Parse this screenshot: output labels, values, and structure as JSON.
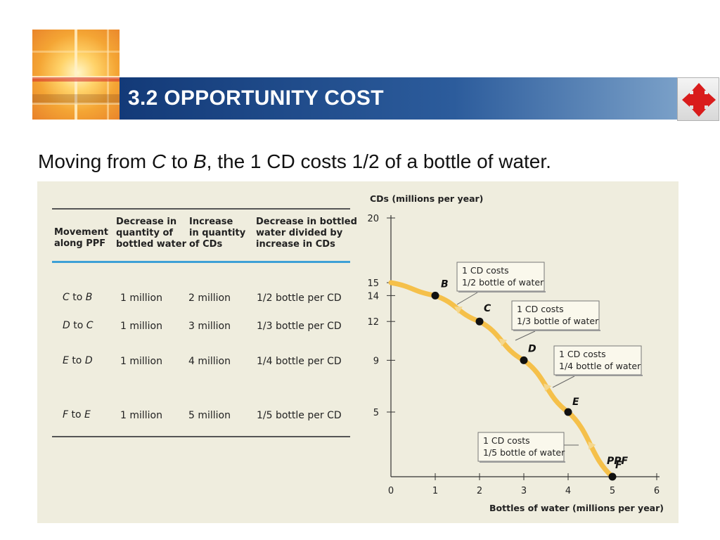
{
  "header": {
    "title": "3.2 OPPORTUNITY COST",
    "logo_icon": "sunlit-window-cross-logo",
    "nav_icon": "four-way-arrow-icon",
    "bar_color": "#133a78",
    "nav_color": "#d91c1c"
  },
  "subtitle": {
    "part1": "Moving from ",
    "c": "C",
    "part2": " to ",
    "b": "B",
    "part3": ", the 1 CD costs 1/2 of a bottle of water."
  },
  "table": {
    "headers": [
      [
        "Movement",
        "along PPF"
      ],
      [
        "Decrease in",
        "quantity of",
        "bottled water"
      ],
      [
        "Increase",
        "in quantity",
        "of CDs"
      ],
      [
        "Decrease in bottled",
        "water divided by",
        "increase in CDs"
      ]
    ],
    "rows": [
      {
        "from": "C",
        "to": "B",
        "conj": "to",
        "water": "1 million",
        "cds": "2 million",
        "ratio": "1/2 bottle per CD"
      },
      {
        "from": "D",
        "to": "C",
        "conj": "to",
        "water": "1 million",
        "cds": "3 million",
        "ratio": "1/3 bottle per CD"
      },
      {
        "from": "E",
        "to": "D",
        "conj": "to",
        "water": "1 million",
        "cds": "4 million",
        "ratio": "1/4 bottle per CD"
      },
      {
        "from": "F",
        "to": "E",
        "conj": "to",
        "water": "1 million",
        "cds": "5 million",
        "ratio": "1/5 bottle per CD"
      }
    ]
  },
  "chart_data": {
    "type": "line",
    "title": "",
    "xlabel": "Bottles of water (millions per year)",
    "ylabel": "CDs (millions per year)",
    "xlim": [
      0,
      6
    ],
    "ylim": [
      0,
      20
    ],
    "x_ticks": [
      0,
      1,
      2,
      3,
      4,
      5,
      6
    ],
    "y_ticks": [
      5,
      9,
      12,
      14,
      15,
      20
    ],
    "series": [
      {
        "name": "PPF",
        "color": "#f5c04a",
        "points": [
          {
            "label": "",
            "x": 0,
            "y": 15
          },
          {
            "label": "B",
            "x": 1,
            "y": 14
          },
          {
            "label": "C",
            "x": 2,
            "y": 12
          },
          {
            "label": "D",
            "x": 3,
            "y": 9
          },
          {
            "label": "E",
            "x": 4,
            "y": 5
          },
          {
            "label": "F",
            "x": 5,
            "y": 0
          }
        ]
      }
    ],
    "curve_label": "PPF",
    "callouts": [
      {
        "line1": "1 CD costs",
        "line2": "1/2 bottle of water"
      },
      {
        "line1": "1 CD costs",
        "line2": "1/3 bottle of water"
      },
      {
        "line1": "1 CD costs",
        "line2": "1/4 bottle of water"
      },
      {
        "line1": "1 CD costs",
        "line2": "1/5 bottle of water"
      }
    ]
  }
}
